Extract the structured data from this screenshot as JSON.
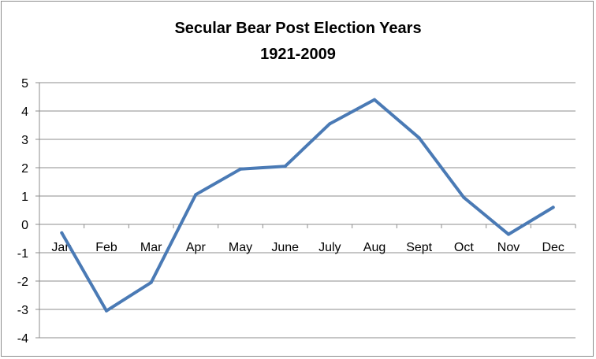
{
  "chart_data": {
    "type": "line",
    "title": "Secular Bear Post Election Years",
    "subtitle": "1921-2009",
    "categories": [
      "Jan",
      "Feb",
      "Mar",
      "Apr",
      "May",
      "June",
      "July",
      "Aug",
      "Sept",
      "Oct",
      "Nov",
      "Dec"
    ],
    "series": [
      {
        "values": [
          -0.3,
          -3.05,
          -2.05,
          1.05,
          1.95,
          2.05,
          3.55,
          4.4,
          3.05,
          0.95,
          -0.35,
          0.6
        ],
        "color": "#4a7ab5"
      }
    ],
    "ylim": [
      -4,
      5
    ],
    "yticks": [
      5,
      4,
      3,
      2,
      1,
      0,
      -1,
      -2,
      -3,
      -4
    ],
    "grid": true,
    "legend": "none",
    "gridline_color": "#8c8c8c"
  }
}
